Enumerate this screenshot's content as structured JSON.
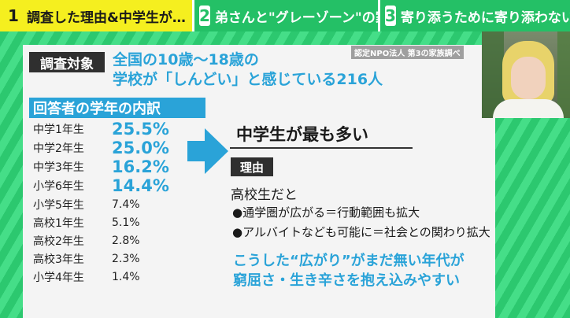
{
  "tabs": [
    {
      "num": "1",
      "label": "調査した理由&中学生が…"
    },
    {
      "num": "2",
      "label": "弟さんと\"グレーゾーン\"の家庭"
    },
    {
      "num": "3",
      "label": "寄り添うために寄り添わない"
    }
  ],
  "source": "認定NPO法人 第3の家族調べ",
  "survey": {
    "target_label": "調査対象",
    "target_line1": "全国の10歳〜18歳の",
    "target_line2": "学校が「しんどい」と感じている216人",
    "breakdown_label": "回答者の学年の内訳",
    "grades": [
      {
        "grade": "中学1年生",
        "percent": "25.5%",
        "value": 25.5,
        "highlight": true
      },
      {
        "grade": "中学2年生",
        "percent": "25.0%",
        "value": 25.0,
        "highlight": true
      },
      {
        "grade": "中学3年生",
        "percent": "16.2%",
        "value": 16.2,
        "highlight": true
      },
      {
        "grade": "小学6年生",
        "percent": "14.4%",
        "value": 14.4,
        "highlight": true
      },
      {
        "grade": "小学5年生",
        "percent": "7.4%",
        "value": 7.4,
        "highlight": false
      },
      {
        "grade": "高校1年生",
        "percent": "5.1%",
        "value": 5.1,
        "highlight": false
      },
      {
        "grade": "高校2年生",
        "percent": "2.8%",
        "value": 2.8,
        "highlight": false
      },
      {
        "grade": "高校3年生",
        "percent": "2.3%",
        "value": 2.3,
        "highlight": false
      },
      {
        "grade": "小学4年生",
        "percent": "1.4%",
        "value": 1.4,
        "highlight": false
      }
    ]
  },
  "conclusion": "中学生が最も多い",
  "reason_label": "理由",
  "high_school": "高校生だと",
  "bullets": [
    "●通学圏が広がる＝行動範囲も拡大",
    "●アルバイトなども可能に＝社会との関わり拡大"
  ],
  "closing_line1": "こうした“広がり”がまだ無い年代が",
  "closing_line2": "窮屈さ・生き辛さを抱え込みやすい",
  "colors": {
    "accent": "#2aa3d8",
    "tab_active": "#f5ef1f",
    "tab_green": "#24c066",
    "background": "#34d27a"
  }
}
